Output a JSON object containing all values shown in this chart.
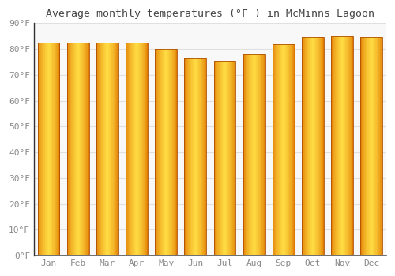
{
  "months": [
    "Jan",
    "Feb",
    "Mar",
    "Apr",
    "May",
    "Jun",
    "Jul",
    "Aug",
    "Sep",
    "Oct",
    "Nov",
    "Dec"
  ],
  "values": [
    82.5,
    82.5,
    82.5,
    82.5,
    80.0,
    76.5,
    75.5,
    78.0,
    82.0,
    84.5,
    85.0,
    84.5
  ],
  "title": "Average monthly temperatures (°F ) in McMinns Lagoon",
  "ylim": [
    0,
    90
  ],
  "yticks": [
    0,
    10,
    20,
    30,
    40,
    50,
    60,
    70,
    80,
    90
  ],
  "ytick_labels": [
    "0°F",
    "10°F",
    "20°F",
    "30°F",
    "40°F",
    "50°F",
    "60°F",
    "70°F",
    "80°F",
    "90°F"
  ],
  "bar_color_center": "#FFDD44",
  "bar_color_edge": "#E07800",
  "background_color": "#FFFFFF",
  "plot_bg_color": "#F8F8F8",
  "grid_color": "#E0E0E0",
  "title_fontsize": 9.5,
  "tick_fontsize": 8,
  "tick_color": "#888888",
  "spine_color": "#333333",
  "title_color": "#444444"
}
